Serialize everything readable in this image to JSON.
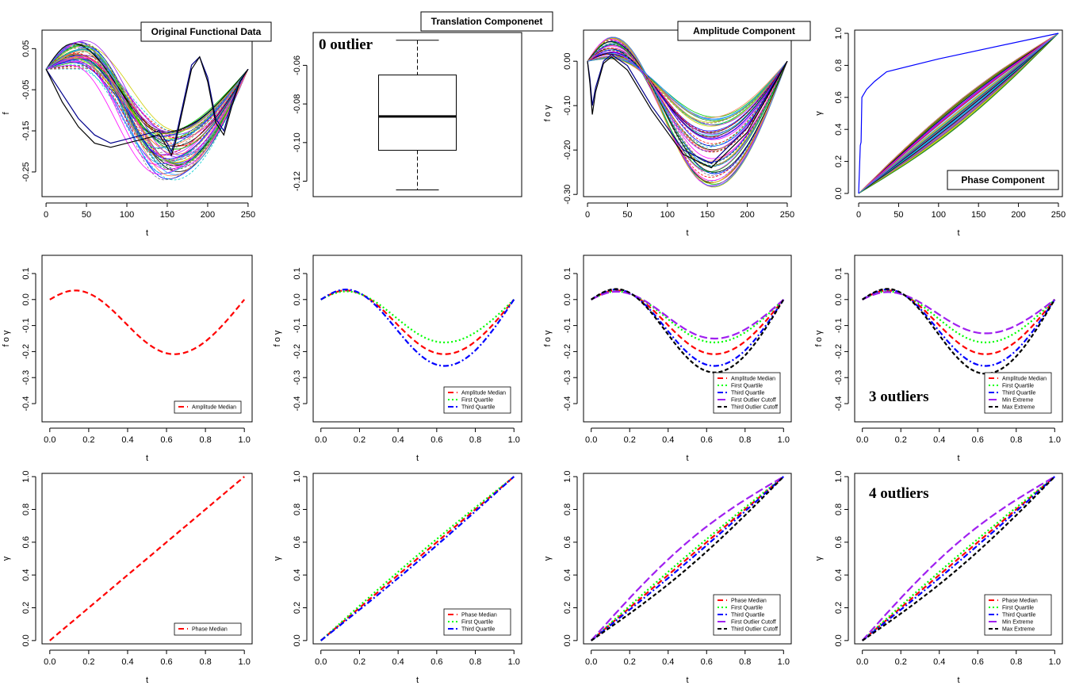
{
  "chart_data": [
    {
      "type": "line",
      "panel": "original-functional-data",
      "title": "Original Functional Data",
      "xlabel": "t",
      "ylabel": "f",
      "xlim": [
        -5,
        255
      ],
      "ylim": [
        -0.31,
        0.095
      ],
      "xticks": [
        0,
        50,
        100,
        150,
        200,
        250
      ],
      "xticklabels": [
        "0",
        "50",
        "100",
        "150",
        "200",
        "250"
      ],
      "yticks": [
        0.05,
        -0.05,
        -0.15,
        -0.25
      ],
      "yticklabels": [
        "0.05",
        "-0.05",
        "-0.15",
        "-0.25"
      ],
      "bundle": {
        "count": 60,
        "x_range": [
          0,
          250
        ],
        "peak_t_range": [
          30,
          55
        ],
        "peak_f_range": [
          0.0,
          0.07
        ],
        "trough_t_range": [
          135,
          170
        ],
        "trough_f_range": [
          -0.27,
          -0.15
        ]
      },
      "outliers": [
        {
          "x": [
            0,
            20,
            40,
            60,
            80,
            100,
            120,
            140,
            150,
            155,
            160,
            170,
            180,
            190,
            200,
            210,
            220,
            230,
            240,
            250
          ],
          "y": [
            0.0,
            -0.06,
            -0.12,
            -0.16,
            -0.18,
            -0.17,
            -0.16,
            -0.15,
            -0.18,
            -0.2,
            -0.17,
            -0.08,
            0.01,
            0.03,
            -0.02,
            -0.12,
            -0.15,
            -0.08,
            -0.03,
            0.0
          ],
          "color": "#00008b"
        },
        {
          "x": [
            0,
            20,
            40,
            60,
            80,
            100,
            120,
            140,
            150,
            155,
            160,
            170,
            180,
            190,
            200,
            210,
            220,
            230,
            240,
            250
          ],
          "y": [
            0.0,
            -0.08,
            -0.14,
            -0.18,
            -0.19,
            -0.18,
            -0.17,
            -0.16,
            -0.19,
            -0.21,
            -0.18,
            -0.09,
            0.0,
            0.03,
            -0.03,
            -0.13,
            -0.16,
            -0.09,
            -0.03,
            0.0
          ],
          "color": "#000000"
        }
      ]
    },
    {
      "type": "box",
      "panel": "translation-component",
      "title": "Translation Componenet",
      "annotation": "0 outlier",
      "ylim": [
        -0.128,
        -0.043
      ],
      "yticks": [
        -0.06,
        -0.08,
        -0.1,
        -0.12
      ],
      "yticklabels": [
        "-0.06",
        "-0.08",
        "-0.10",
        "-0.12"
      ],
      "box": {
        "whisker_high": -0.047,
        "q3": -0.065,
        "median": -0.0865,
        "q1": -0.104,
        "whisker_low": -0.1245
      }
    },
    {
      "type": "line",
      "panel": "amplitude-component",
      "title": "Amplitude Component",
      "xlabel": "t",
      "ylabel": "f o γ",
      "xlim": [
        -5,
        255
      ],
      "ylim": [
        -0.305,
        0.07
      ],
      "xticks": [
        0,
        50,
        100,
        150,
        200,
        250
      ],
      "xticklabels": [
        "0",
        "50",
        "100",
        "150",
        "200",
        "250"
      ],
      "yticks": [
        0.0,
        -0.1,
        -0.2,
        -0.3
      ],
      "yticklabels": [
        "0.00",
        "-0.10",
        "-0.20",
        "-0.30"
      ],
      "bundle": {
        "count": 60,
        "x_range": [
          0,
          250
        ],
        "peak_t": 30,
        "peak_f_range": [
          0.005,
          0.055
        ],
        "trough_t": 155,
        "trough_f_range": [
          -0.285,
          -0.125
        ]
      },
      "outliers": [
        {
          "x": [
            0,
            3,
            6,
            10,
            20,
            30,
            50,
            80,
            120,
            155,
            200,
            250
          ],
          "y": [
            0.0,
            -0.04,
            -0.1,
            -0.06,
            0.0,
            0.015,
            -0.01,
            -0.1,
            -0.2,
            -0.23,
            -0.15,
            0.0
          ],
          "color": "#00008b"
        },
        {
          "x": [
            0,
            3,
            6,
            10,
            20,
            30,
            50,
            80,
            120,
            155,
            200,
            250
          ],
          "y": [
            0.0,
            -0.05,
            -0.12,
            -0.07,
            -0.005,
            0.01,
            -0.02,
            -0.11,
            -0.21,
            -0.24,
            -0.16,
            0.0
          ],
          "color": "#000000"
        }
      ]
    },
    {
      "type": "line",
      "panel": "phase-component",
      "title": "Phase Component",
      "xlabel": "t",
      "ylabel": "γ",
      "xlim": [
        -5,
        255
      ],
      "ylim": [
        -0.02,
        1.02
      ],
      "xticks": [
        0,
        50,
        100,
        150,
        200,
        250
      ],
      "xticklabels": [
        "0",
        "50",
        "100",
        "150",
        "200",
        "250"
      ],
      "yticks": [
        0.0,
        0.2,
        0.4,
        0.6,
        0.8,
        1.0
      ],
      "yticklabels": [
        "0.0",
        "0.2",
        "0.4",
        "0.6",
        "0.8",
        "1.0"
      ],
      "bundle": {
        "count": 60,
        "x_range": [
          0,
          250
        ],
        "y_range": [
          0,
          1
        ]
      },
      "outliers": [
        {
          "x": [
            0,
            2,
            3,
            4,
            10,
            20,
            35,
            100,
            250
          ],
          "y": [
            0.0,
            0.3,
            0.32,
            0.6,
            0.65,
            0.7,
            0.76,
            0.84,
            1.0
          ],
          "color": "#0000ff"
        }
      ]
    },
    {
      "type": "line",
      "panel": "amplitude-median",
      "xlabel": "t",
      "ylabel": "f o γ",
      "xlim": [
        -0.04,
        1.04
      ],
      "ylim": [
        -0.47,
        0.17
      ],
      "xticks": [
        0.0,
        0.2,
        0.4,
        0.6,
        0.8,
        1.0
      ],
      "xticklabels": [
        "0.0",
        "0.2",
        "0.4",
        "0.6",
        "0.8",
        "1.0"
      ],
      "yticks": [
        0.1,
        0.0,
        -0.1,
        -0.2,
        -0.3,
        -0.4
      ],
      "yticklabels": [
        "0.1",
        "0.0",
        "-0.1",
        "-0.2",
        "-0.3",
        "-0.4"
      ],
      "legend": "bottom-right",
      "series": [
        {
          "name": "Amplitude Median",
          "amp": 0.21,
          "color": "#ff0000",
          "dash": "7,4"
        }
      ]
    },
    {
      "type": "line",
      "panel": "amplitude-quartiles",
      "xlabel": "t",
      "ylabel": "f o γ",
      "xlim": [
        -0.04,
        1.04
      ],
      "ylim": [
        -0.47,
        0.17
      ],
      "xticks": [
        0.0,
        0.2,
        0.4,
        0.6,
        0.8,
        1.0
      ],
      "xticklabels": [
        "0.0",
        "0.2",
        "0.4",
        "0.6",
        "0.8",
        "1.0"
      ],
      "yticks": [
        0.1,
        0.0,
        -0.1,
        -0.2,
        -0.3,
        -0.4
      ],
      "yticklabels": [
        "0.1",
        "0.0",
        "-0.1",
        "-0.2",
        "-0.3",
        "-0.4"
      ],
      "legend": "bottom-right",
      "series": [
        {
          "name": "Amplitude Median",
          "amp": 0.21,
          "color": "#ff0000",
          "dash": "7,4"
        },
        {
          "name": "First Quartile",
          "amp": 0.165,
          "color": "#00ff00",
          "dash": "2,3"
        },
        {
          "name": "Third Quartile",
          "amp": 0.255,
          "color": "#0000ff",
          "dash": "7,3,2,3"
        }
      ]
    },
    {
      "type": "line",
      "panel": "amplitude-cutoffs",
      "xlabel": "t",
      "ylabel": "f o γ",
      "xlim": [
        -0.04,
        1.04
      ],
      "ylim": [
        -0.47,
        0.17
      ],
      "xticks": [
        0.0,
        0.2,
        0.4,
        0.6,
        0.8,
        1.0
      ],
      "xticklabels": [
        "0.0",
        "0.2",
        "0.4",
        "0.6",
        "0.8",
        "1.0"
      ],
      "yticks": [
        0.1,
        0.0,
        -0.1,
        -0.2,
        -0.3,
        -0.4
      ],
      "yticklabels": [
        "0.1",
        "0.0",
        "-0.1",
        "-0.2",
        "-0.3",
        "-0.4"
      ],
      "legend": "bottom-right",
      "series": [
        {
          "name": "Amplitude Median",
          "amp": 0.21,
          "color": "#ff0000",
          "dash": "7,4"
        },
        {
          "name": "First Quartile",
          "amp": 0.165,
          "color": "#00ff00",
          "dash": "2,3"
        },
        {
          "name": "Third Quartile",
          "amp": 0.255,
          "color": "#0000ff",
          "dash": "7,3,2,3"
        },
        {
          "name": "First Outlier Cutoff",
          "amp": 0.15,
          "color": "#a020f0",
          "dash": "10,4"
        },
        {
          "name": "Third Outlier Cutoff",
          "amp": 0.28,
          "color": "#000000",
          "dash": "5,3"
        }
      ]
    },
    {
      "type": "line",
      "panel": "amplitude-extremes",
      "annotation": "3 outliers",
      "xlabel": "t",
      "ylabel": "f o γ",
      "xlim": [
        -0.04,
        1.04
      ],
      "ylim": [
        -0.47,
        0.17
      ],
      "xticks": [
        0.0,
        0.2,
        0.4,
        0.6,
        0.8,
        1.0
      ],
      "xticklabels": [
        "0.0",
        "0.2",
        "0.4",
        "0.6",
        "0.8",
        "1.0"
      ],
      "yticks": [
        0.1,
        0.0,
        -0.1,
        -0.2,
        -0.3,
        -0.4
      ],
      "yticklabels": [
        "0.1",
        "0.0",
        "-0.1",
        "-0.2",
        "-0.3",
        "-0.4"
      ],
      "legend": "bottom-right",
      "series": [
        {
          "name": "Amplitude Median",
          "amp": 0.21,
          "color": "#ff0000",
          "dash": "7,4"
        },
        {
          "name": "First Quartile",
          "amp": 0.165,
          "color": "#00ff00",
          "dash": "2,3"
        },
        {
          "name": "Third Quartile",
          "amp": 0.255,
          "color": "#0000ff",
          "dash": "7,3,2,3"
        },
        {
          "name": "Min Extreme",
          "amp": 0.13,
          "color": "#a020f0",
          "dash": "10,4"
        },
        {
          "name": "Max Extreme",
          "amp": 0.285,
          "color": "#000000",
          "dash": "5,3"
        }
      ]
    },
    {
      "type": "line",
      "panel": "phase-median",
      "xlabel": "t",
      "ylabel": "γ",
      "xlim": [
        -0.04,
        1.04
      ],
      "ylim": [
        -0.02,
        1.02
      ],
      "xticks": [
        0.0,
        0.2,
        0.4,
        0.6,
        0.8,
        1.0
      ],
      "xticklabels": [
        "0.0",
        "0.2",
        "0.4",
        "0.6",
        "0.8",
        "1.0"
      ],
      "yticks": [
        0.0,
        0.2,
        0.4,
        0.6,
        0.8,
        1.0
      ],
      "yticklabels": [
        "0.0",
        "0.2",
        "0.4",
        "0.6",
        "0.8",
        "1.0"
      ],
      "legend": "bottom-right",
      "series": [
        {
          "name": "Phase Median",
          "dev": 0.0,
          "color": "#ff0000",
          "dash": "7,4"
        }
      ]
    },
    {
      "type": "line",
      "panel": "phase-quartiles",
      "xlabel": "t",
      "ylabel": "γ",
      "xlim": [
        -0.04,
        1.04
      ],
      "ylim": [
        -0.02,
        1.02
      ],
      "xticks": [
        0.0,
        0.2,
        0.4,
        0.6,
        0.8,
        1.0
      ],
      "xticklabels": [
        "0.0",
        "0.2",
        "0.4",
        "0.6",
        "0.8",
        "1.0"
      ],
      "yticks": [
        0.0,
        0.2,
        0.4,
        0.6,
        0.8,
        1.0
      ],
      "yticklabels": [
        "0.0",
        "0.2",
        "0.4",
        "0.6",
        "0.8",
        "1.0"
      ],
      "legend": "bottom-right",
      "series": [
        {
          "name": "Phase Median",
          "dev": 0.0,
          "color": "#ff0000",
          "dash": "7,4"
        },
        {
          "name": "First Quartile",
          "dev": 0.02,
          "color": "#00ff00",
          "dash": "2,3"
        },
        {
          "name": "Third Quartile",
          "dev": -0.02,
          "color": "#0000ff",
          "dash": "7,3,2,3"
        }
      ]
    },
    {
      "type": "line",
      "panel": "phase-cutoffs",
      "xlabel": "t",
      "ylabel": "γ",
      "xlim": [
        -0.04,
        1.04
      ],
      "ylim": [
        -0.02,
        1.02
      ],
      "xticks": [
        0.0,
        0.2,
        0.4,
        0.6,
        0.8,
        1.0
      ],
      "xticklabels": [
        "0.0",
        "0.2",
        "0.4",
        "0.6",
        "0.8",
        "1.0"
      ],
      "yticks": [
        0.0,
        0.2,
        0.4,
        0.6,
        0.8,
        1.0
      ],
      "yticklabels": [
        "0.0",
        "0.2",
        "0.4",
        "0.6",
        "0.8",
        "1.0"
      ],
      "legend": "bottom-right",
      "series": [
        {
          "name": "Phase Median",
          "dev": 0.0,
          "color": "#ff0000",
          "dash": "7,4"
        },
        {
          "name": "First Quartile",
          "dev": 0.02,
          "color": "#00ff00",
          "dash": "2,3"
        },
        {
          "name": "Third Quartile",
          "dev": -0.02,
          "color": "#0000ff",
          "dash": "7,3,2,3"
        },
        {
          "name": "First Outlier Cutoff",
          "dev": 0.1,
          "color": "#a020f0",
          "dash": "10,4"
        },
        {
          "name": "Third Outlier Cutoff",
          "dev": -0.06,
          "color": "#000000",
          "dash": "5,3"
        }
      ]
    },
    {
      "type": "line",
      "panel": "phase-extremes",
      "annotation": "4 outliers",
      "xlabel": "t",
      "ylabel": "γ",
      "xlim": [
        -0.04,
        1.04
      ],
      "ylim": [
        -0.02,
        1.02
      ],
      "xticks": [
        0.0,
        0.2,
        0.4,
        0.6,
        0.8,
        1.0
      ],
      "xticklabels": [
        "0.0",
        "0.2",
        "0.4",
        "0.6",
        "0.8",
        "1.0"
      ],
      "yticks": [
        0.0,
        0.2,
        0.4,
        0.6,
        0.8,
        1.0
      ],
      "yticklabels": [
        "0.0",
        "0.2",
        "0.4",
        "0.6",
        "0.8",
        "1.0"
      ],
      "legend": "bottom-right",
      "series": [
        {
          "name": "Phase Median",
          "dev": 0.0,
          "color": "#ff0000",
          "dash": "7,4"
        },
        {
          "name": "First Quartile",
          "dev": 0.02,
          "color": "#00ff00",
          "dash": "2,3"
        },
        {
          "name": "Third Quartile",
          "dev": -0.02,
          "color": "#0000ff",
          "dash": "7,3,2,3"
        },
        {
          "name": "Min Extreme",
          "dev": 0.1,
          "color": "#a020f0",
          "dash": "10,4"
        },
        {
          "name": "Max Extreme",
          "dev": -0.06,
          "color": "#000000",
          "dash": "5,3"
        }
      ]
    }
  ]
}
